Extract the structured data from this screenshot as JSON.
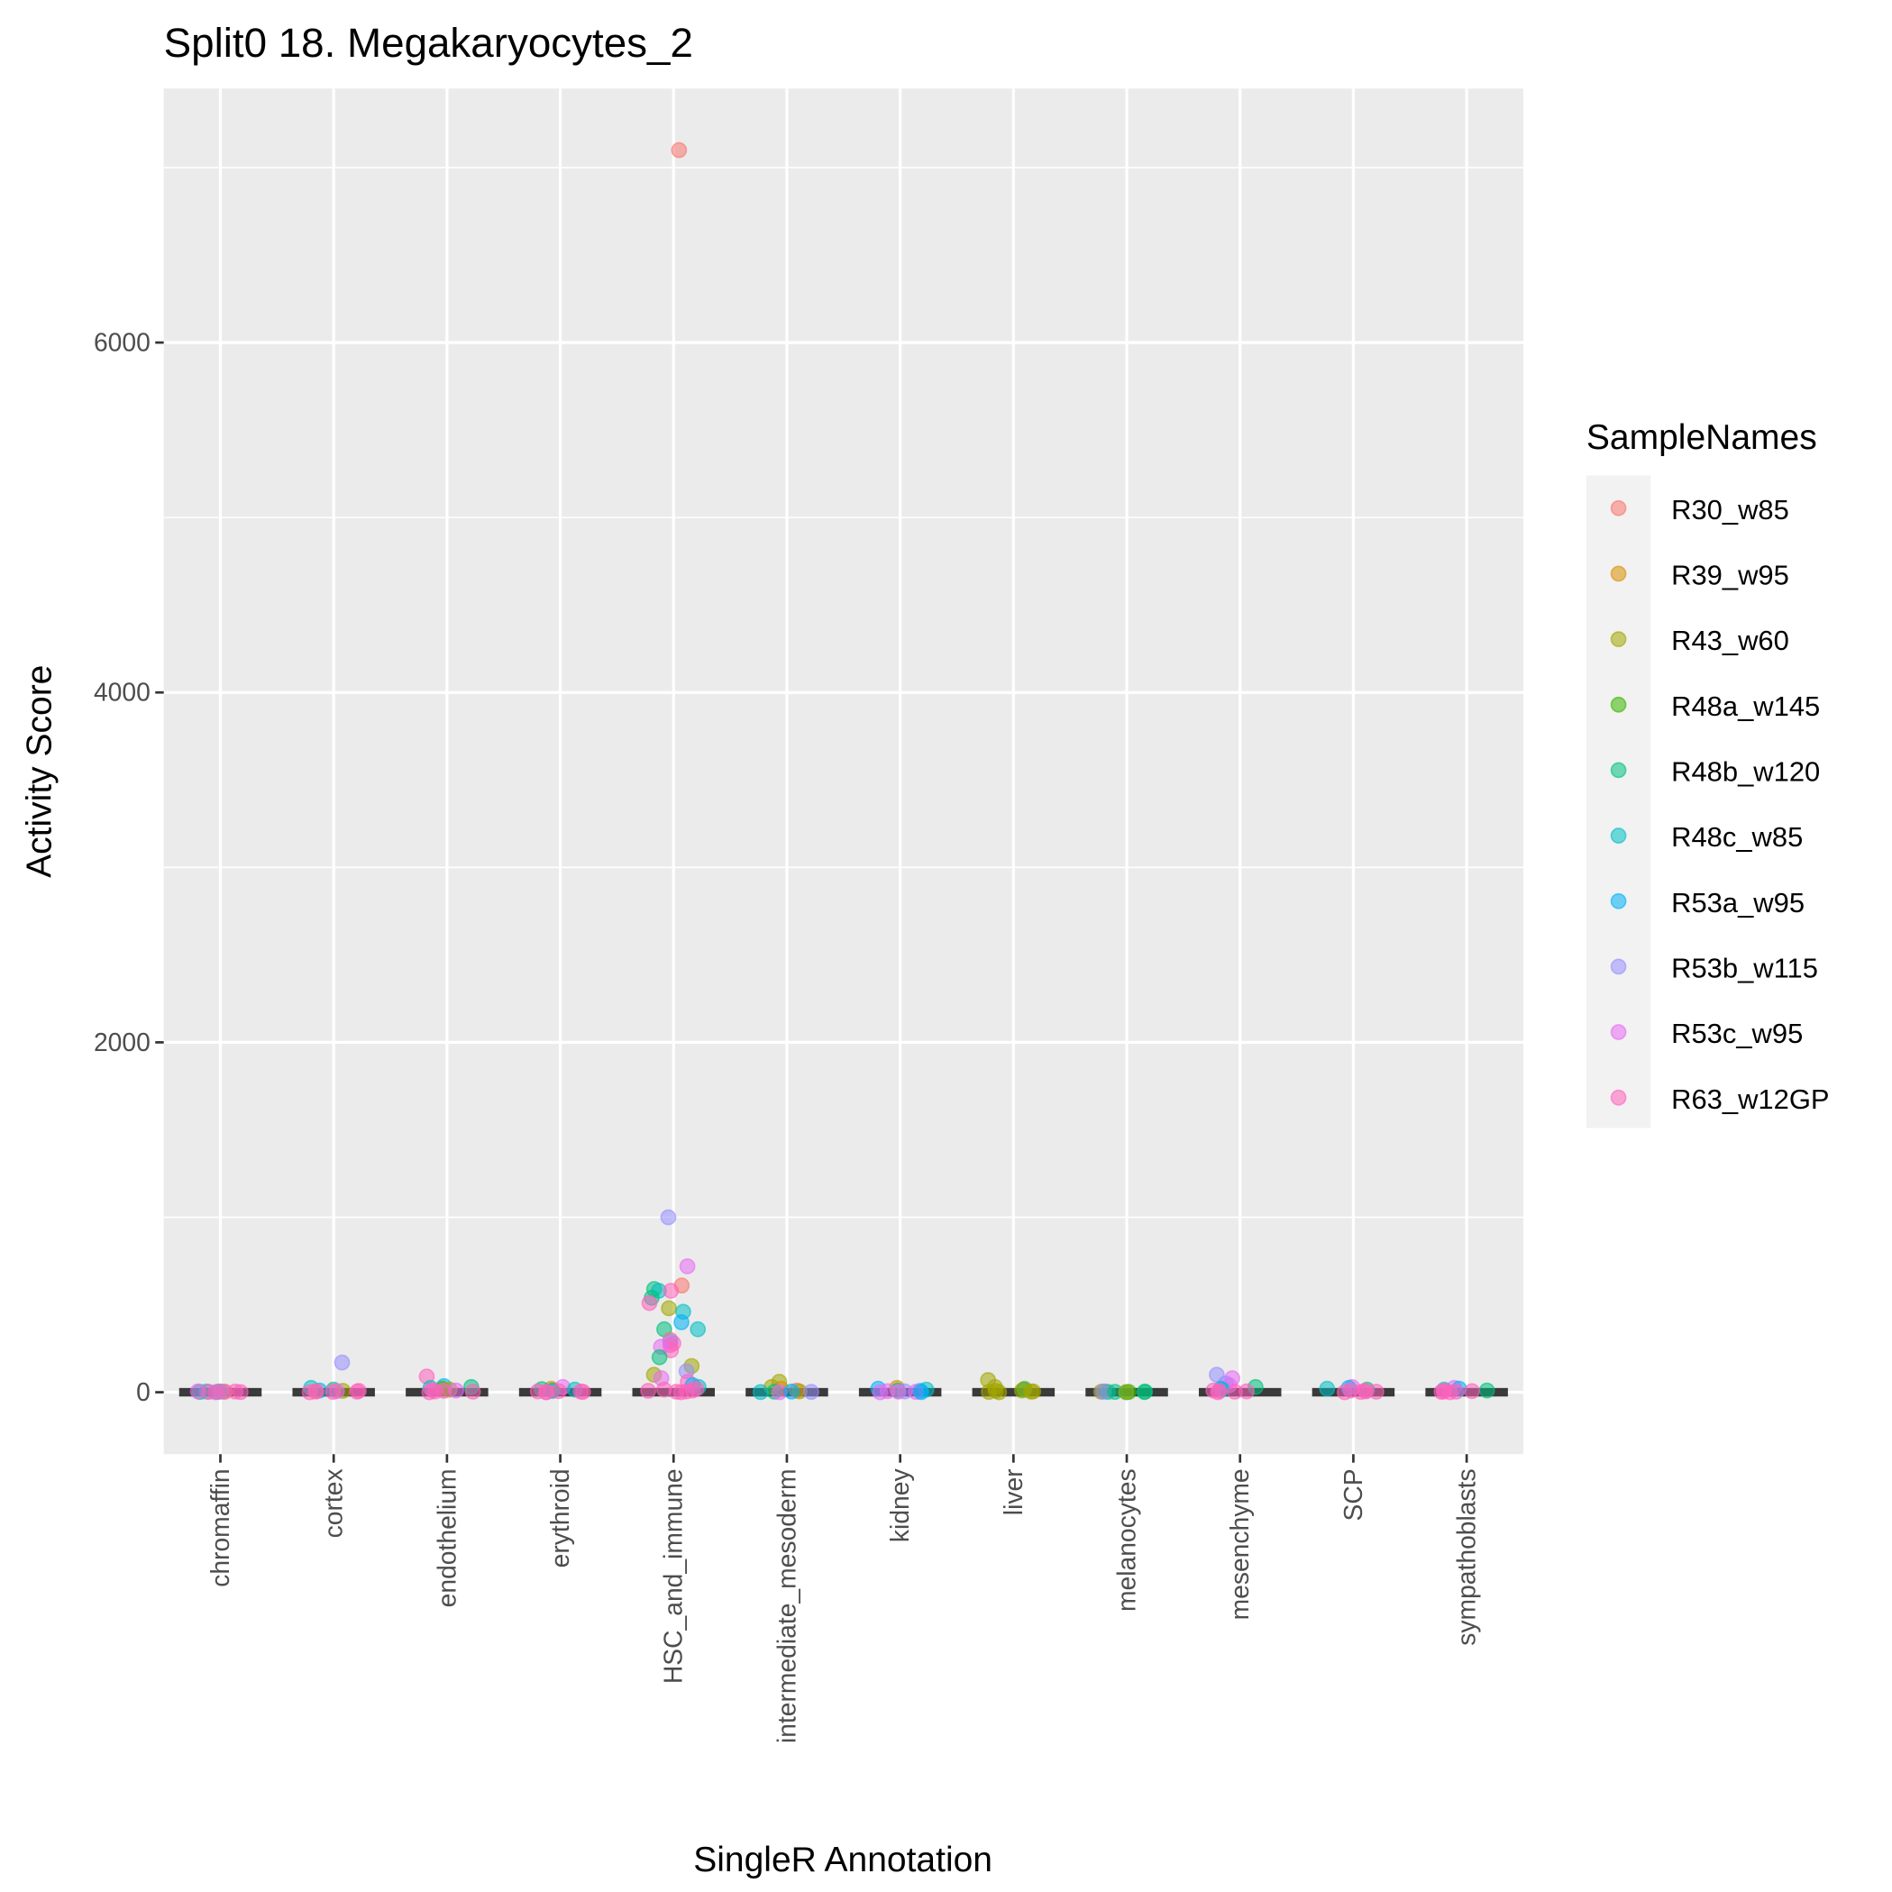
{
  "chart_data": {
    "type": "scatter",
    "subtype": "jitter with boxplot per category",
    "title": "Split0 18. Megakaryocytes_2",
    "xlabel": "SingleR Annotation",
    "ylabel": "Activity Score",
    "ylim": [
      -354,
      7452
    ],
    "yticks": [
      0,
      2000,
      4000,
      6000
    ],
    "ytick_labels": [
      "0",
      "2000",
      "4000",
      "6000"
    ],
    "grid": true,
    "legend": {
      "title": "SampleNames",
      "placement": "right",
      "entries": [
        "R30_w85",
        "R39_w95",
        "R43_w60",
        "R48a_w145",
        "R48b_w120",
        "R48c_w85",
        "R53a_w95",
        "R53b_w115",
        "R53c_w95",
        "R63_w12GP"
      ],
      "colors": [
        "#F8766D",
        "#D89000",
        "#A3A500",
        "#39B600",
        "#00BF7D",
        "#00BFC4",
        "#00B0F6",
        "#9590FF",
        "#E76BF3",
        "#FF62BC"
      ]
    },
    "categories": [
      "chromaffin",
      "cortex",
      "endothelium",
      "erythroid",
      "HSC_and_immune",
      "intermediate_mesoderm",
      "kidney",
      "liver",
      "melanocytes",
      "mesenchyme",
      "SCP",
      "sympathoblasts"
    ],
    "boxplot_median": [
      0,
      0,
      0,
      0,
      0,
      0,
      0,
      0,
      0,
      0,
      0,
      0
    ],
    "points": [
      [
        [
          1,
          5
        ],
        [
          2,
          3
        ],
        [
          4,
          2
        ],
        [
          5,
          4
        ],
        [
          6,
          2
        ],
        [
          7,
          3
        ],
        [
          8,
          5
        ],
        [
          9,
          1
        ],
        [
          9,
          3
        ],
        [
          9,
          0
        ],
        [
          9,
          2
        ],
        [
          9,
          4
        ]
      ],
      [
        [
          7,
          170
        ],
        [
          5,
          25
        ],
        [
          4,
          15
        ],
        [
          6,
          10
        ],
        [
          2,
          8
        ],
        [
          0,
          5
        ],
        [
          8,
          6
        ],
        [
          9,
          2
        ],
        [
          9,
          5
        ],
        [
          9,
          0
        ],
        [
          9,
          3
        ],
        [
          9,
          8
        ]
      ],
      [
        [
          9,
          90
        ],
        [
          6,
          35
        ],
        [
          4,
          30
        ],
        [
          5,
          25
        ],
        [
          3,
          20
        ],
        [
          2,
          15
        ],
        [
          8,
          10
        ],
        [
          9,
          5
        ],
        [
          9,
          0
        ],
        [
          9,
          3
        ],
        [
          9,
          8
        ],
        [
          9,
          12
        ]
      ],
      [
        [
          8,
          30
        ],
        [
          1,
          20
        ],
        [
          4,
          18
        ],
        [
          5,
          15
        ],
        [
          2,
          10
        ],
        [
          6,
          8
        ],
        [
          9,
          5
        ],
        [
          9,
          2
        ],
        [
          9,
          0
        ],
        [
          9,
          4
        ],
        [
          9,
          6
        ],
        [
          9,
          1
        ]
      ],
      [
        [
          0,
          7100
        ],
        [
          7,
          1000
        ],
        [
          8,
          720
        ],
        [
          0,
          610
        ],
        [
          4,
          590
        ],
        [
          5,
          580
        ],
        [
          9,
          580
        ],
        [
          4,
          540
        ],
        [
          9,
          510
        ],
        [
          2,
          480
        ],
        [
          5,
          460
        ],
        [
          6,
          400
        ],
        [
          5,
          360
        ],
        [
          4,
          360
        ],
        [
          0,
          300
        ],
        [
          9,
          280
        ],
        [
          7,
          290
        ],
        [
          2,
          150
        ],
        [
          9,
          240
        ],
        [
          9,
          270
        ],
        [
          8,
          260
        ],
        [
          4,
          200
        ],
        [
          7,
          120
        ],
        [
          2,
          100
        ],
        [
          8,
          80
        ],
        [
          9,
          60
        ],
        [
          6,
          40
        ],
        [
          5,
          30
        ],
        [
          9,
          20
        ],
        [
          9,
          10
        ],
        [
          9,
          5
        ],
        [
          9,
          0
        ],
        [
          9,
          3
        ],
        [
          9,
          8
        ],
        [
          9,
          15
        ]
      ],
      [
        [
          2,
          60
        ],
        [
          2,
          30
        ],
        [
          1,
          20
        ],
        [
          0,
          10
        ],
        [
          2,
          5
        ],
        [
          4,
          3
        ],
        [
          7,
          2
        ],
        [
          5,
          1
        ],
        [
          8,
          0
        ],
        [
          6,
          4
        ]
      ],
      [
        [
          1,
          25
        ],
        [
          6,
          20
        ],
        [
          5,
          15
        ],
        [
          4,
          10
        ],
        [
          6,
          8
        ],
        [
          7,
          5
        ],
        [
          8,
          3
        ],
        [
          8,
          0
        ],
        [
          8,
          2
        ],
        [
          6,
          1
        ],
        [
          8,
          6
        ]
      ],
      [
        [
          2,
          70
        ],
        [
          2,
          30
        ],
        [
          2,
          20
        ],
        [
          4,
          15
        ],
        [
          2,
          10
        ],
        [
          2,
          5
        ],
        [
          2,
          0
        ],
        [
          2,
          3
        ],
        [
          2,
          8
        ],
        [
          2,
          2
        ]
      ],
      [
        [
          1,
          5
        ],
        [
          2,
          3
        ],
        [
          3,
          2
        ],
        [
          4,
          1
        ],
        [
          4,
          4
        ],
        [
          5,
          2
        ],
        [
          4,
          0
        ],
        [
          7,
          3
        ],
        [
          4,
          2
        ],
        [
          2,
          1
        ]
      ],
      [
        [
          7,
          100
        ],
        [
          8,
          80
        ],
        [
          7,
          50
        ],
        [
          8,
          40
        ],
        [
          4,
          30
        ],
        [
          6,
          20
        ],
        [
          5,
          15
        ],
        [
          9,
          10
        ],
        [
          9,
          5
        ],
        [
          9,
          0
        ],
        [
          9,
          3
        ],
        [
          9,
          8
        ]
      ],
      [
        [
          8,
          30
        ],
        [
          6,
          25
        ],
        [
          5,
          20
        ],
        [
          4,
          15
        ],
        [
          9,
          10
        ],
        [
          9,
          5
        ],
        [
          9,
          0
        ],
        [
          9,
          3
        ],
        [
          9,
          8
        ],
        [
          9,
          2
        ]
      ],
      [
        [
          8,
          25
        ],
        [
          6,
          20
        ],
        [
          5,
          15
        ],
        [
          4,
          10
        ],
        [
          9,
          8
        ],
        [
          9,
          5
        ],
        [
          9,
          0
        ],
        [
          9,
          3
        ],
        [
          9,
          2
        ],
        [
          9,
          6
        ]
      ]
    ]
  }
}
